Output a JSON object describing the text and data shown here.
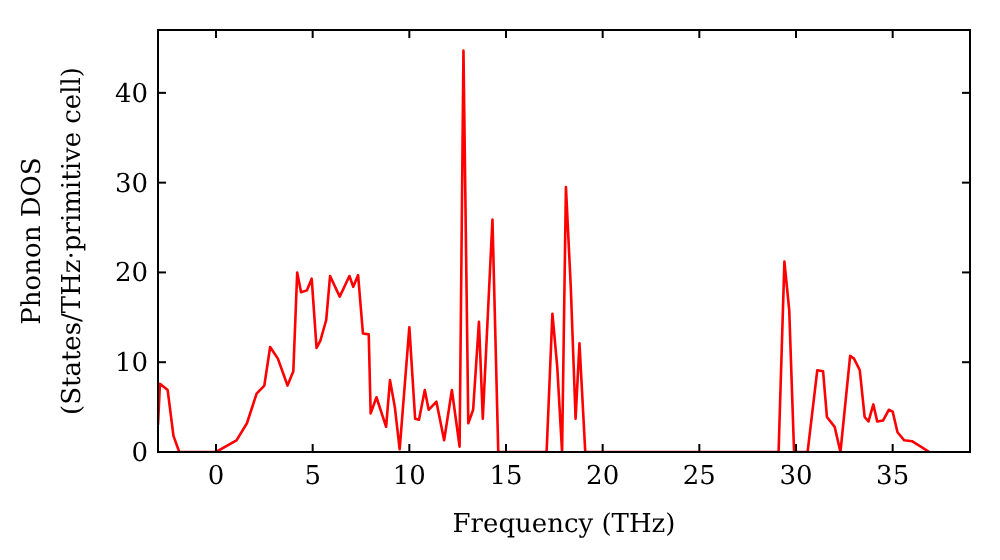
{
  "chart_data": {
    "type": "line",
    "xlabel": "Frequency (THz)",
    "ylabel": "Phonon DOS\n(States/THz·primitive cell)",
    "xlim": [
      -3,
      39
    ],
    "ylim": [
      0,
      47
    ],
    "xticks": [
      0,
      5,
      10,
      15,
      20,
      25,
      30,
      35
    ],
    "yticks": [
      0,
      10,
      20,
      30,
      40
    ],
    "grid": false,
    "line_style": "solid",
    "series": [
      {
        "color": "#ff0000",
        "x": [
          -3,
          -2.9,
          -2.5,
          -2.2,
          -1.9,
          0,
          1.06,
          1.6,
          2.1,
          2.5,
          2.8,
          3.2,
          3.7,
          4.0,
          4.2,
          4.4,
          4.7,
          4.95,
          5.2,
          5.4,
          5.7,
          5.9,
          6.4,
          6.9,
          7.1,
          7.35,
          7.6,
          7.9,
          8.0,
          8.3,
          8.8,
          9.0,
          9.25,
          9.5,
          10.0,
          10.3,
          10.5,
          10.8,
          11.0,
          11.4,
          11.8,
          12.2,
          12.6,
          12.8,
          13.05,
          13.3,
          13.6,
          13.8,
          14.3,
          14.6,
          17.1,
          17.4,
          17.65,
          17.9,
          18.1,
          18.35,
          18.6,
          18.8,
          19.1,
          29.1,
          29.4,
          29.65,
          29.9,
          30.6,
          31.1,
          31.4,
          31.6,
          32.0,
          32.3,
          32.8,
          33.0,
          33.3,
          33.55,
          33.75,
          34.0,
          34.2,
          34.5,
          34.8,
          35.0,
          35.25,
          35.6,
          36.0,
          36.9
        ],
        "values": [
          3,
          7.6,
          6.9,
          1.8,
          0,
          0,
          1.3,
          3.2,
          6.5,
          7.4,
          11.7,
          10.4,
          7.4,
          9.0,
          20,
          17.8,
          18,
          19.3,
          11.6,
          12.4,
          14.7,
          19.6,
          17.3,
          19.6,
          18.4,
          19.7,
          13.2,
          13.1,
          4.3,
          6.1,
          2.8,
          8.0,
          5.0,
          0.3,
          13.9,
          3.7,
          3.6,
          6.9,
          4.7,
          5.6,
          1.3,
          6.9,
          0.6,
          44.7,
          3.2,
          4.7,
          14.5,
          3.7,
          25.9,
          0,
          0,
          15.4,
          9.5,
          0,
          29.5,
          18.4,
          3.7,
          12.1,
          0,
          0,
          21.2,
          15.8,
          0,
          0,
          9.1,
          9.0,
          3.9,
          2.8,
          0,
          10.7,
          10.4,
          9.1,
          3.9,
          3.4,
          5.3,
          3.4,
          3.5,
          4.7,
          4.5,
          2.2,
          1.3,
          1.2,
          0
        ]
      }
    ]
  }
}
